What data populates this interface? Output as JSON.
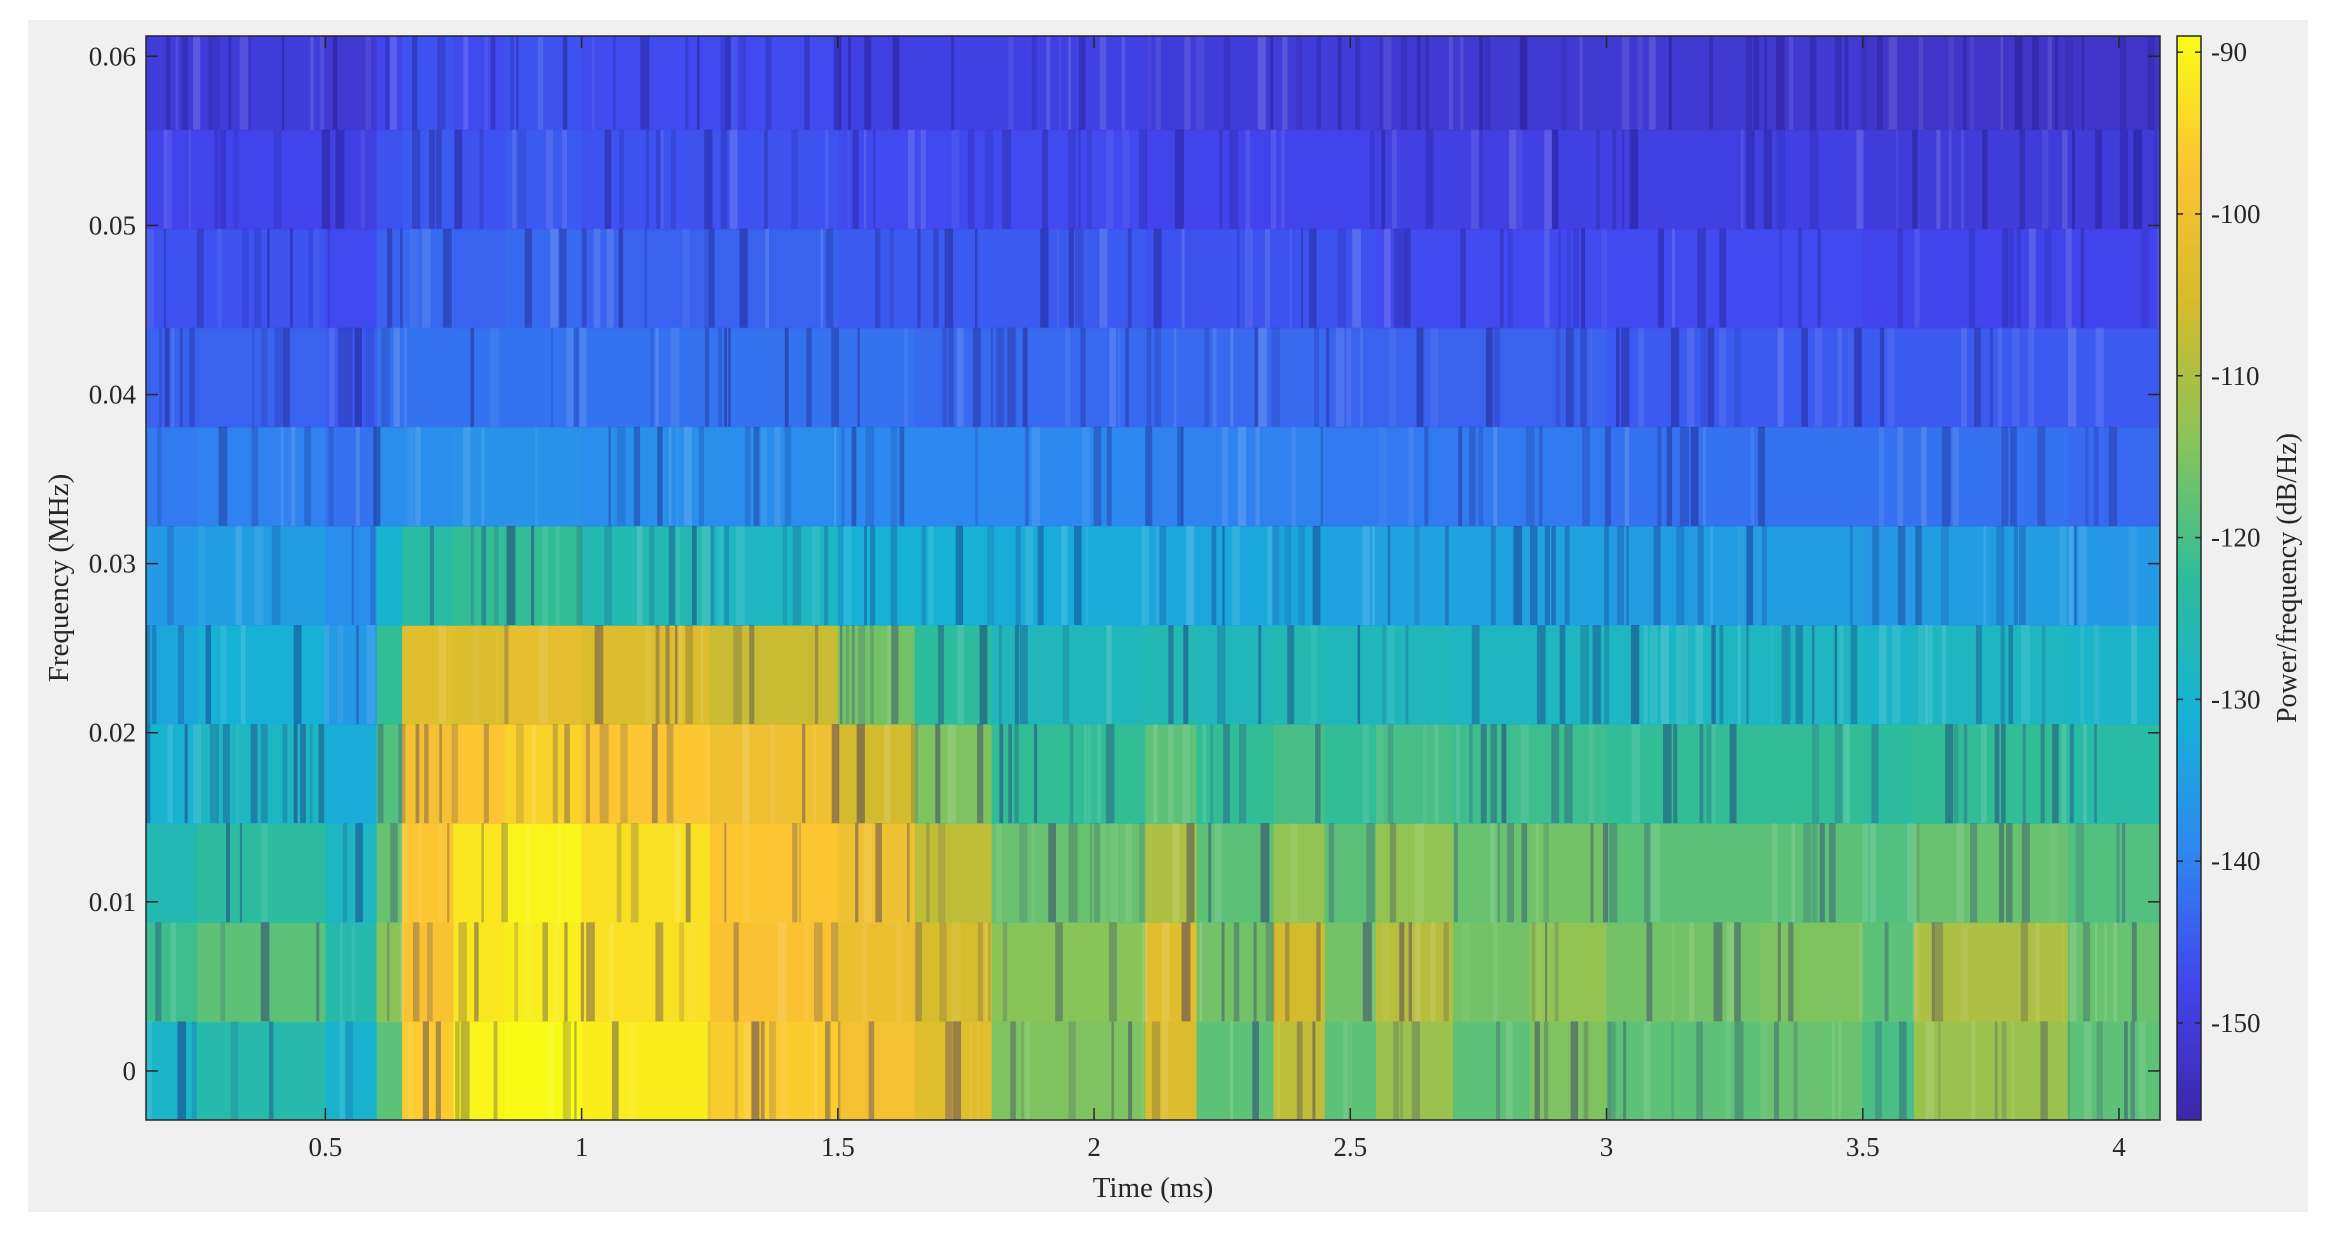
{
  "chart_data": {
    "type": "heatmap",
    "title": "",
    "xlabel": "Time (ms)",
    "ylabel": "Frequency (MHz)",
    "colorbar_label": "Power/frequency (dB/Hz)",
    "xlim": [
      0.15,
      4.08
    ],
    "ylim": [
      -0.0029,
      0.0612
    ],
    "clim": [
      -156,
      -89
    ],
    "x_ticks": [
      0.5,
      1,
      1.5,
      2,
      2.5,
      3,
      3.5,
      4
    ],
    "x_tick_labels": [
      "0.5",
      "1",
      "1.5",
      "2",
      "2.5",
      "3",
      "3.5",
      "4"
    ],
    "y_ticks": [
      0,
      0.01,
      0.02,
      0.03,
      0.04,
      0.05,
      0.06
    ],
    "y_tick_labels": [
      "0",
      "0.01",
      "0.02",
      "0.03",
      "0.04",
      "0.05",
      "0.06"
    ],
    "colorbar_ticks": [
      -90,
      -100,
      -110,
      -120,
      -130,
      -140,
      -150
    ],
    "colorbar_tick_labels": [
      "-90",
      "-100",
      "-110",
      "-120",
      "-130",
      "-140",
      "-150"
    ],
    "colormap": "parula",
    "colormap_stops": [
      "#3e26a8",
      "#4145ee",
      "#2e88f0",
      "#16b2d5",
      "#2ebd9b",
      "#88c459",
      "#d4bb2c",
      "#fbc333",
      "#f9fb15"
    ],
    "frequency_bins": [
      0,
      0.00586,
      0.01172,
      0.01758,
      0.02344,
      0.0293,
      0.03516,
      0.04102,
      0.04688,
      0.05273,
      0.05859
    ],
    "time_segments_ms": [
      0.15,
      0.25,
      0.5,
      0.6,
      0.65,
      0.75,
      0.85,
      1.0,
      1.25,
      1.5,
      1.65,
      1.8,
      2.1,
      2.2,
      2.35,
      2.45,
      2.55,
      2.7,
      2.85,
      3.0,
      3.3,
      3.5,
      3.6,
      3.9,
      4.08
    ],
    "power_db": [
      [
        -129,
        -125,
        -130,
        -118,
        -96,
        -90,
        -89,
        -91,
        -96,
        -99,
        -103,
        -115,
        -104,
        -118,
        -108,
        -118,
        -112,
        -118,
        -115,
        -118,
        -117,
        -120,
        -112,
        -118
      ],
      [
        -121,
        -118,
        -125,
        -114,
        -98,
        -92,
        -91,
        -93,
        -98,
        -101,
        -105,
        -114,
        -103,
        -116,
        -106,
        -116,
        -109,
        -116,
        -113,
        -116,
        -115,
        -118,
        -110,
        -117
      ],
      [
        -126,
        -123,
        -128,
        -117,
        -97,
        -92,
        -90,
        -93,
        -97,
        -100,
        -108,
        -117,
        -110,
        -118,
        -113,
        -118,
        -113,
        -117,
        -116,
        -118,
        -118,
        -119,
        -117,
        -119
      ],
      [
        -130,
        -128,
        -132,
        -119,
        -99,
        -97,
        -95,
        -97,
        -100,
        -106,
        -115,
        -122,
        -118,
        -122,
        -120,
        -122,
        -120,
        -121,
        -121,
        -122,
        -122,
        -123,
        -122,
        -124
      ],
      [
        -133,
        -131,
        -136,
        -122,
        -103,
        -104,
        -102,
        -104,
        -107,
        -116,
        -123,
        -127,
        -126,
        -127,
        -126,
        -127,
        -127,
        -128,
        -128,
        -128,
        -128,
        -129,
        -128,
        -129
      ],
      [
        -136,
        -135,
        -138,
        -130,
        -124,
        -122,
        -122,
        -126,
        -128,
        -131,
        -131,
        -132,
        -133,
        -133,
        -133,
        -134,
        -134,
        -134,
        -134,
        -135,
        -135,
        -136,
        -135,
        -136
      ],
      [
        -141,
        -140,
        -142,
        -138,
        -138,
        -137,
        -137,
        -138,
        -138,
        -139,
        -139,
        -139,
        -140,
        -140,
        -140,
        -141,
        -141,
        -141,
        -141,
        -142,
        -142,
        -142,
        -142,
        -143
      ],
      [
        -144,
        -144,
        -145,
        -142,
        -142,
        -142,
        -142,
        -142,
        -142,
        -142,
        -143,
        -143,
        -143,
        -143,
        -143,
        -144,
        -144,
        -144,
        -144,
        -145,
        -145,
        -145,
        -145,
        -145
      ],
      [
        -146,
        -146,
        -147,
        -144,
        -143,
        -144,
        -143,
        -144,
        -144,
        -145,
        -145,
        -145,
        -146,
        -146,
        -146,
        -146,
        -147,
        -147,
        -147,
        -147,
        -147,
        -148,
        -148,
        -148
      ],
      [
        -148,
        -148,
        -149,
        -146,
        -145,
        -146,
        -145,
        -146,
        -146,
        -147,
        -147,
        -147,
        -148,
        -148,
        -148,
        -148,
        -149,
        -149,
        -149,
        -149,
        -149,
        -150,
        -150,
        -150
      ],
      [
        -150,
        -150,
        -151,
        -148,
        -146,
        -147,
        -146,
        -147,
        -147,
        -149,
        -149,
        -149,
        -150,
        -150,
        -150,
        -150,
        -151,
        -151,
        -151,
        -151,
        -151,
        -152,
        -152,
        -152
      ]
    ]
  }
}
